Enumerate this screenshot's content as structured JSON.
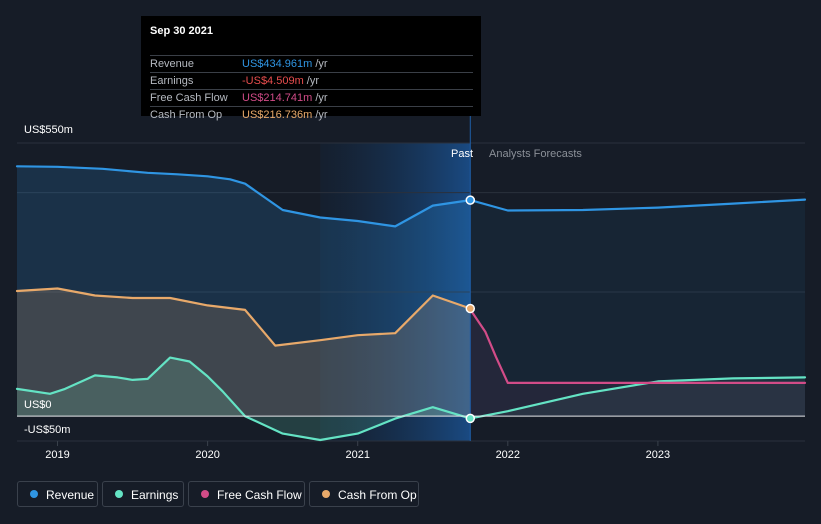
{
  "chart_data": {
    "type": "area",
    "y_axis": {
      "top_label": "US$550m",
      "zero_label": "US$0",
      "bottom_label": "-US$50m",
      "range": [
        -50,
        550
      ]
    },
    "x_axis": {
      "ticks": [
        "2019",
        "2020",
        "2021",
        "2022",
        "2023"
      ],
      "range": [
        2018.73,
        2023.98
      ]
    },
    "regions": {
      "past_label": "Past",
      "forecast_label": "Analysts Forecasts",
      "divider_x": 2021.75,
      "highlight_start": 2020.75
    },
    "grid": true,
    "legend_position": "bottom-left",
    "series": [
      {
        "name": "Revenue",
        "color": "#2f95e3",
        "points": [
          [
            2018.73,
            503
          ],
          [
            2019.0,
            502
          ],
          [
            2019.3,
            498
          ],
          [
            2019.6,
            490
          ],
          [
            2019.8,
            487
          ],
          [
            2020.0,
            483
          ],
          [
            2020.15,
            477
          ],
          [
            2020.25,
            468
          ],
          [
            2020.5,
            415
          ],
          [
            2020.75,
            400
          ],
          [
            2021.0,
            393
          ],
          [
            2021.25,
            382
          ],
          [
            2021.5,
            424
          ],
          [
            2021.75,
            434.961
          ]
        ],
        "forecast": [
          [
            2021.75,
            434.961
          ],
          [
            2022.0,
            414
          ],
          [
            2022.5,
            415
          ],
          [
            2023.0,
            420
          ],
          [
            2023.5,
            428
          ],
          [
            2023.98,
            436
          ]
        ]
      },
      {
        "name": "Earnings",
        "color": "#64e3c4",
        "points": [
          [
            2018.73,
            55
          ],
          [
            2018.95,
            45
          ],
          [
            2019.05,
            55
          ],
          [
            2019.25,
            82
          ],
          [
            2019.4,
            78
          ],
          [
            2019.5,
            73
          ],
          [
            2019.6,
            75
          ],
          [
            2019.75,
            118
          ],
          [
            2019.88,
            110
          ],
          [
            2020.0,
            80
          ],
          [
            2020.1,
            50
          ],
          [
            2020.25,
            0
          ],
          [
            2020.5,
            -35
          ],
          [
            2020.75,
            -48
          ],
          [
            2021.0,
            -35
          ],
          [
            2021.25,
            -5
          ],
          [
            2021.5,
            18
          ],
          [
            2021.75,
            -4.509
          ]
        ],
        "forecast": [
          [
            2021.75,
            -4.509
          ],
          [
            2022.0,
            10
          ],
          [
            2022.5,
            45
          ],
          [
            2023.0,
            70
          ],
          [
            2023.5,
            76
          ],
          [
            2023.98,
            78
          ]
        ]
      },
      {
        "name": "Free Cash Flow",
        "color": "#d24c88",
        "points": [
          [
            2021.75,
            214.741
          ]
        ],
        "forecast": [
          [
            2021.75,
            214.741
          ],
          [
            2021.85,
            170
          ],
          [
            2021.92,
            120
          ],
          [
            2022.0,
            67
          ],
          [
            2023.98,
            67
          ]
        ]
      },
      {
        "name": "Cash From Op",
        "color": "#e8a96a",
        "points": [
          [
            2018.73,
            252
          ],
          [
            2019.0,
            257
          ],
          [
            2019.25,
            243
          ],
          [
            2019.5,
            238
          ],
          [
            2019.75,
            238
          ],
          [
            2020.0,
            223
          ],
          [
            2020.25,
            214
          ],
          [
            2020.45,
            142
          ],
          [
            2020.75,
            153
          ],
          [
            2021.0,
            163
          ],
          [
            2021.25,
            167
          ],
          [
            2021.5,
            243
          ],
          [
            2021.75,
            216.736
          ]
        ],
        "forecast": []
      }
    ]
  },
  "tooltip": {
    "date": "Sep 30 2021",
    "rows": [
      {
        "label": "Revenue",
        "value": "US$434.961m",
        "unit": "/yr",
        "color": "#2f95e3"
      },
      {
        "label": "Earnings",
        "value": "-US$4.509m",
        "unit": "/yr",
        "color": "#e84d4d"
      },
      {
        "label": "Free Cash Flow",
        "value": "US$214.741m",
        "unit": "/yr",
        "color": "#d24c88"
      },
      {
        "label": "Cash From Op",
        "value": "US$216.736m",
        "unit": "/yr",
        "color": "#e8a96a"
      }
    ]
  },
  "legend": [
    {
      "label": "Revenue",
      "color": "#2f95e3"
    },
    {
      "label": "Earnings",
      "color": "#64e3c4"
    },
    {
      "label": "Free Cash Flow",
      "color": "#d24c88"
    },
    {
      "label": "Cash From Op",
      "color": "#e8a96a"
    }
  ]
}
